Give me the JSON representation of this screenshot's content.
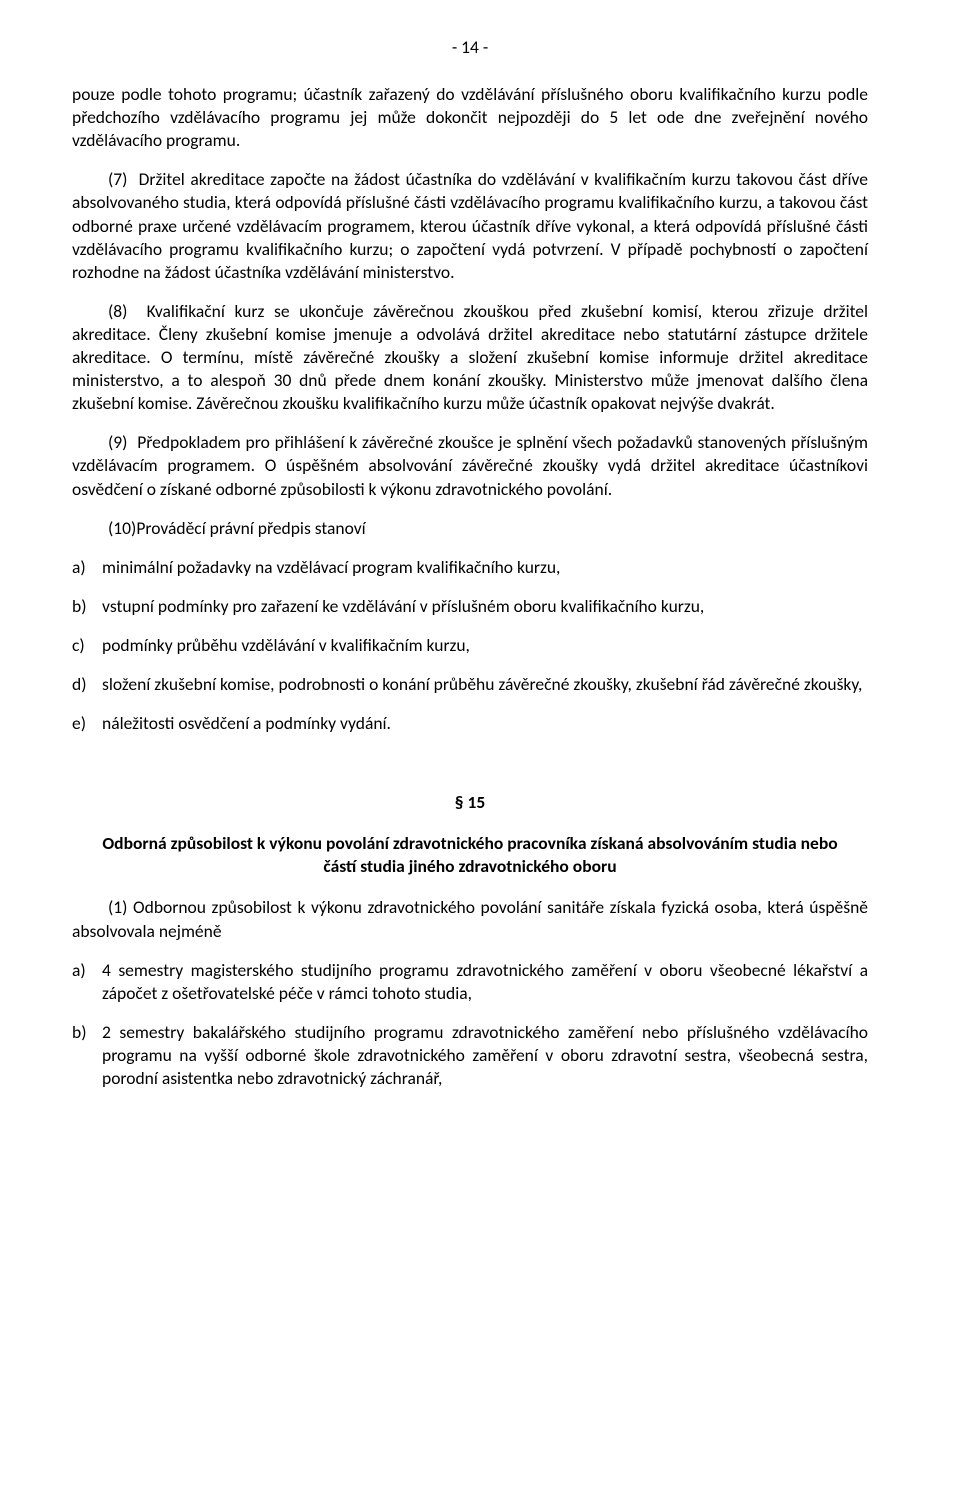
{
  "page_number": "- 14 -",
  "p1": "pouze podle tohoto programu; účastník zařazený do vzdělávání příslušného oboru kvalifikačního kurzu podle předchozího vzdělávacího programu jej může dokončit nejpozději do 5 let ode dne zveřejnění nového vzdělávacího programu.",
  "p2": "(7)  Držitel akreditace započte na žádost účastníka do vzdělávání v kvalifikačním kurzu takovou část dříve absolvovaného studia, která odpovídá příslušné části vzdělávacího programu kvalifikačního kurzu, a takovou část odborné praxe určené vzdělávacím programem, kterou účastník dříve vykonal, a která odpovídá příslušné části vzdělávacího programu kvalifikačního kurzu; o započtení vydá potvrzení. V případě pochybností o započtení rozhodne na žádost účastníka vzdělávání ministerstvo.",
  "p3": "(8)  Kvalifikační kurz se ukončuje závěrečnou zkouškou před zkušební komisí, kterou zřizuje držitel akreditace. Členy zkušební komise jmenuje a odvolává držitel akreditace nebo statutární zástupce držitele akreditace. O termínu, místě závěrečné zkoušky a složení zkušební komise informuje držitel akreditace ministerstvo, a to alespoň 30 dnů přede dnem konání zkoušky. Ministerstvo může jmenovat dalšího člena zkušební komise. Závěrečnou zkoušku kvalifikačního kurzu může účastník opakovat nejvýše dvakrát.",
  "p4": "(9)  Předpokladem pro přihlášení k závěrečné zkoušce je splnění všech požadavků stanovených příslušným vzdělávacím programem. O úspěšném absolvování závěrečné zkoušky vydá držitel akreditace účastníkovi osvědčení o získané odborné způsobilosti k výkonu zdravotnického povolání.",
  "p5": "(10)Prováděcí právní předpis stanoví",
  "list1": {
    "a": {
      "marker": "a)",
      "text": "minimální požadavky na vzdělávací program kvalifikačního kurzu,"
    },
    "b": {
      "marker": "b)",
      "text": "vstupní podmínky pro zařazení ke vzdělávání v příslušném oboru kvalifikačního kurzu,"
    },
    "c": {
      "marker": "c)",
      "text": "podmínky průběhu vzdělávání v kvalifikačním kurzu,"
    },
    "d": {
      "marker": "d)",
      "text": "složení zkušební komise, podrobnosti o konání průběhu závěrečné zkoušky, zkušební řád závěrečné zkoušky,"
    },
    "e": {
      "marker": "e)",
      "text": "náležitosti osvědčení a podmínky vydání."
    }
  },
  "section_num": "§ 15",
  "section_title": "Odborná způsobilost k výkonu povolání zdravotnického pracovníka získaná absolvováním studia nebo částí studia jiného zdravotnického oboru",
  "p6": "(1) Odbornou způsobilost k výkonu zdravotnického povolání sanitáře získala fyzická osoba, která úspěšně absolvovala nejméně",
  "list2": {
    "a": {
      "marker": "a)",
      "text": "4 semestry magisterského studijního programu zdravotnického zaměření v oboru všeobecné lékařství a zápočet z ošetřovatelské péče v rámci tohoto studia,"
    },
    "b": {
      "marker": "b)",
      "text": "2 semestry bakalářského studijního programu zdravotnického zaměření nebo příslušného vzdělávacího programu na vyšší odborné škole zdravotnického zaměření v oboru zdravotní sestra, všeobecná sestra, porodní asistentka nebo zdravotnický záchranář,"
    }
  }
}
